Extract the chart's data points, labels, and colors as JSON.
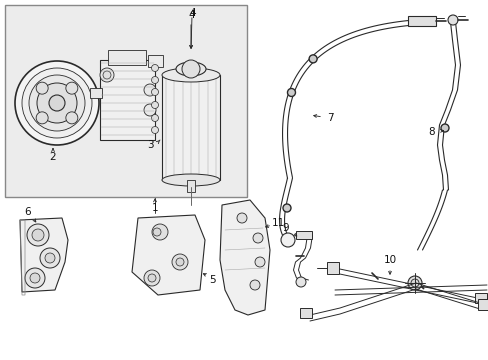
{
  "bg_color": "#f0f0f0",
  "white": "#ffffff",
  "line_color": "#2a2a2a",
  "gray_fill": "#e8e8e8",
  "light_gray": "#f2f2f2",
  "label_color": "#111111",
  "figsize": [
    4.89,
    3.6
  ],
  "dpi": 100
}
